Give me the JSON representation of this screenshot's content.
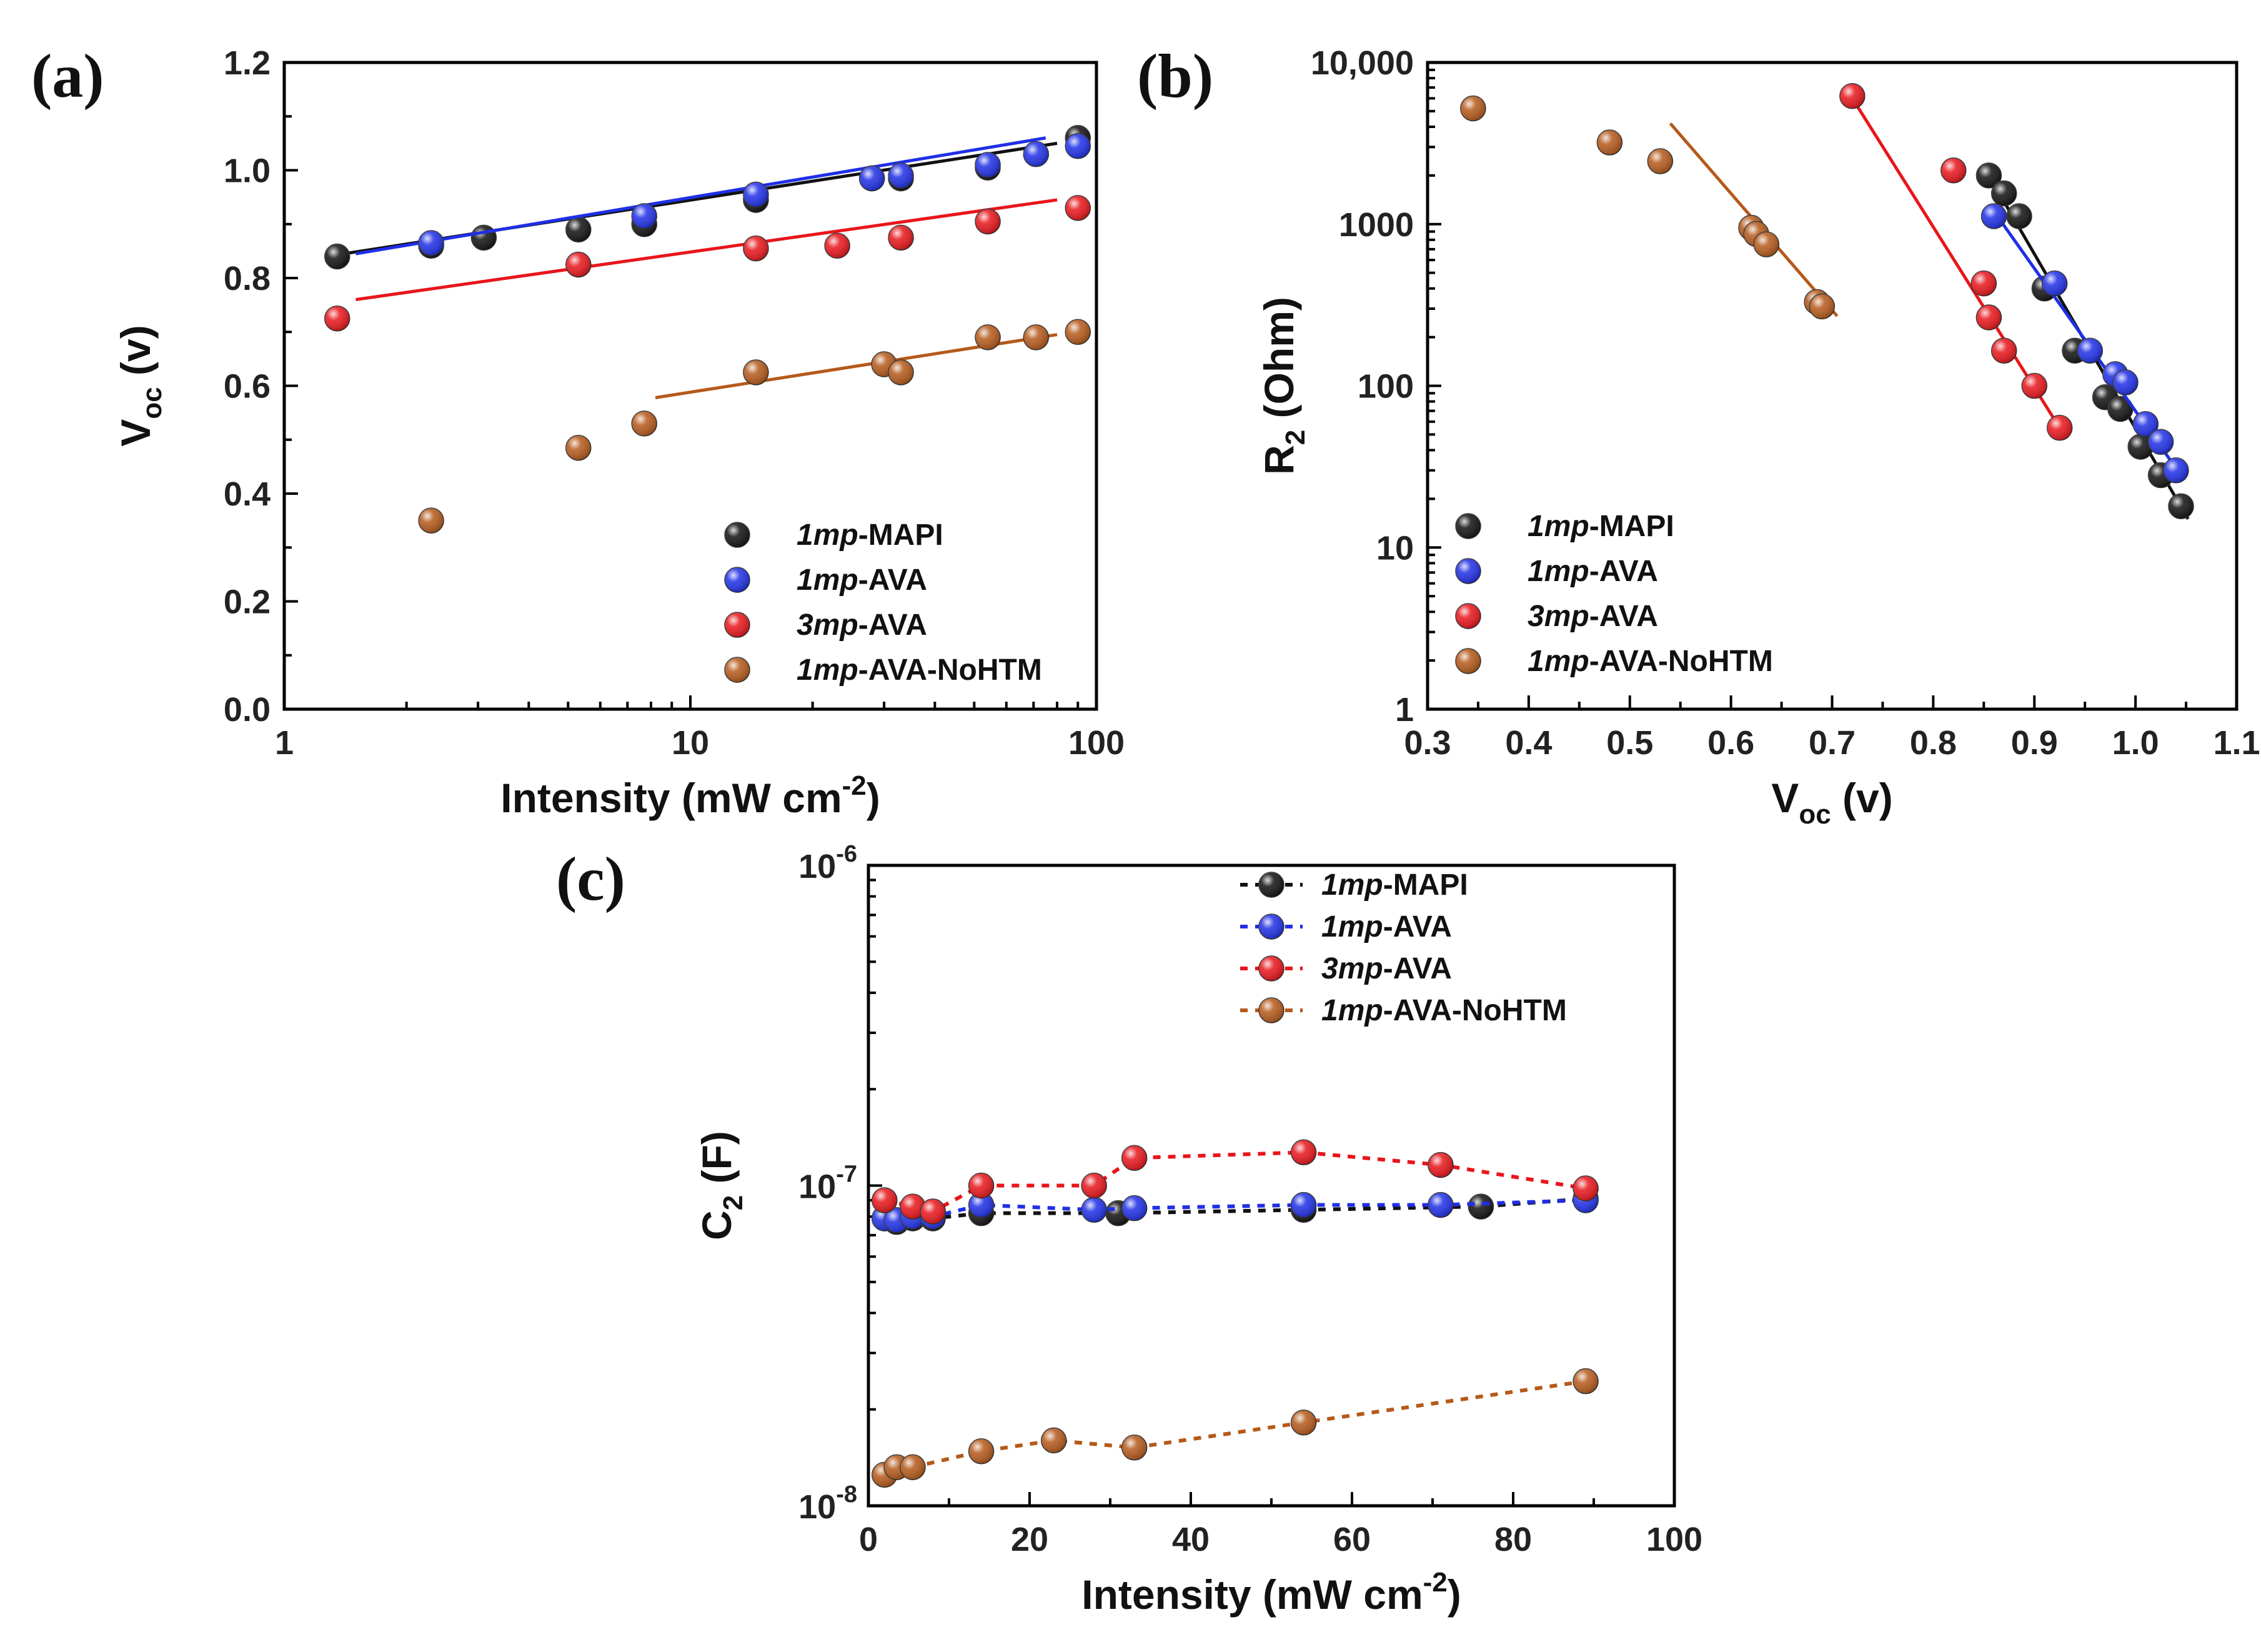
{
  "chart_data": [
    {
      "panel": "(a)",
      "type": "scatter",
      "x_scale": "log",
      "xlim": [
        1,
        100
      ],
      "ylim": [
        0,
        1.2
      ],
      "xticks": [
        1,
        10,
        100
      ],
      "xtick_labels": [
        "1",
        "10",
        "100"
      ],
      "yticks": [
        0,
        0.2,
        0.4,
        0.6,
        0.8,
        1.0,
        1.2
      ],
      "ytick_labels": [
        "0.0",
        "0.2",
        "0.4",
        "0.6",
        "0.8",
        "1.0",
        "1.2"
      ],
      "xlabel": "Intensity (mW cm",
      "xlabel_sup": "-2",
      "xlabel_end": ")",
      "ylabel": "V",
      "ylabel_sub": "oc",
      "ylabel_end": " (v)",
      "legend_position": "bottom-right",
      "series": [
        {
          "name_italic": "1mp",
          "name_rest": "-MAPI",
          "color": "#111111",
          "x": [
            1.35,
            2.3,
            3.1,
            5.3,
            7.7,
            14.5,
            28,
            33,
            54,
            90
          ],
          "y": [
            0.84,
            0.86,
            0.875,
            0.89,
            0.9,
            0.945,
            0.985,
            0.985,
            1.005,
            1.06
          ],
          "fit": {
            "x": [
              1.4,
              80
            ],
            "y": [
              0.845,
              1.05
            ]
          }
        },
        {
          "name_italic": "1mp",
          "name_rest": "-AVA",
          "color": "#1f2fe6",
          "x": [
            2.3,
            7.7,
            14.5,
            28,
            33,
            54,
            71,
            90
          ],
          "y": [
            0.865,
            0.915,
            0.955,
            0.985,
            0.99,
            1.01,
            1.03,
            1.045
          ],
          "fit": {
            "x": [
              1.5,
              75
            ],
            "y": [
              0.845,
              1.06
            ]
          }
        },
        {
          "name_italic": "3mp",
          "name_rest": "-AVA",
          "color": "#e8151b",
          "x": [
            1.35,
            5.3,
            14.5,
            23,
            33,
            54,
            90
          ],
          "y": [
            0.725,
            0.825,
            0.855,
            0.86,
            0.875,
            0.905,
            0.93
          ],
          "fit": {
            "x": [
              1.5,
              80
            ],
            "y": [
              0.76,
              0.945
            ]
          }
        },
        {
          "name_italic": "1mp",
          "name_rest": "-AVA-NoHTM",
          "color": "#b5591a",
          "x": [
            2.3,
            5.3,
            7.7,
            14.5,
            30,
            33,
            54,
            71,
            90
          ],
          "y": [
            0.35,
            0.485,
            0.53,
            0.625,
            0.64,
            0.625,
            0.69,
            0.69,
            0.7
          ],
          "fit": {
            "x": [
              8.2,
              80
            ],
            "y": [
              0.578,
              0.695
            ]
          }
        }
      ]
    },
    {
      "panel": "(b)",
      "type": "scatter",
      "y_scale": "log",
      "xlim": [
        0.3,
        1.1
      ],
      "ylim": [
        1,
        10000
      ],
      "xticks": [
        0.3,
        0.4,
        0.5,
        0.6,
        0.7,
        0.8,
        0.9,
        1.0,
        1.1
      ],
      "xtick_labels": [
        "0.3",
        "0.4",
        "0.5",
        "0.6",
        "0.7",
        "0.8",
        "0.9",
        "1.0",
        "1.1"
      ],
      "yticks": [
        1,
        10,
        100,
        1000,
        10000
      ],
      "ytick_labels": [
        "1",
        "10",
        "100",
        "1000",
        "10,000"
      ],
      "xlabel": "V",
      "xlabel_sub": "oc",
      "xlabel_end": " (v)",
      "ylabel": "R",
      "ylabel_sub": "2",
      "ylabel_end": " (Ohm)",
      "legend_position": "bottom-left",
      "series": [
        {
          "name_italic": "1mp",
          "name_rest": "-MAPI",
          "color": "#111111",
          "x": [
            0.855,
            0.87,
            0.885,
            0.91,
            0.94,
            0.97,
            0.985,
            1.005,
            1.025,
            1.045
          ],
          "y": [
            2000,
            1550,
            1120,
            400,
            165,
            85,
            72,
            42,
            28,
            18
          ],
          "fit": {
            "x": [
              0.855,
              1.052
            ],
            "y": [
              2000,
              15
            ]
          }
        },
        {
          "name_italic": "1mp",
          "name_rest": "-AVA",
          "color": "#1f2fe6",
          "x": [
            0.86,
            0.92,
            0.955,
            0.98,
            0.99,
            1.01,
            1.025,
            1.04
          ],
          "y": [
            1120,
            430,
            165,
            118,
            105,
            58,
            45,
            30
          ],
          "fit": {
            "x": [
              0.86,
              1.045
            ],
            "y": [
              1200,
              28
            ]
          }
        },
        {
          "name_italic": "3mp",
          "name_rest": "-AVA",
          "color": "#e8151b",
          "x": [
            0.72,
            0.82,
            0.85,
            0.855,
            0.87,
            0.9,
            0.925
          ],
          "y": [
            6200,
            2150,
            430,
            265,
            165,
            100,
            55
          ],
          "fit": {
            "x": [
              0.72,
              0.925
            ],
            "y": [
              6000,
              55
            ]
          }
        },
        {
          "name_italic": "1mp",
          "name_rest": "-AVA-NoHTM",
          "color": "#b5591a",
          "x": [
            0.345,
            0.48,
            0.53,
            0.62,
            0.625,
            0.635,
            0.685,
            0.69
          ],
          "y": [
            5200,
            3200,
            2450,
            950,
            870,
            750,
            330,
            310
          ],
          "fit": {
            "x": [
              0.54,
              0.705
            ],
            "y": [
              4200,
              270
            ]
          }
        }
      ]
    },
    {
      "panel": "(c)",
      "type": "line",
      "y_scale": "log",
      "line_style": "dotted",
      "xlim": [
        0,
        100
      ],
      "ylim": [
        1e-08,
        1e-06
      ],
      "xticks": [
        0,
        20,
        40,
        60,
        80,
        100
      ],
      "xtick_labels": [
        "0",
        "20",
        "40",
        "60",
        "80",
        "100"
      ],
      "yticks": [
        1e-08,
        1e-07,
        1e-06
      ],
      "ytick_base": "10",
      "ytick_exponents": [
        "-8",
        "-7",
        "-6"
      ],
      "xlabel": "Intensity (mW cm",
      "xlabel_sup": "-2",
      "xlabel_end": ")",
      "ylabel": "C",
      "ylabel_sub": "2",
      "ylabel_end": " (F)",
      "legend_position": "top-right",
      "series": [
        {
          "name_italic": "1mp",
          "name_rest": "-MAPI",
          "color": "#111111",
          "x": [
            2,
            3.5,
            5.5,
            8,
            14,
            31,
            54,
            76,
            89
          ],
          "y": [
            7.9e-08,
            7.7e-08,
            7.9e-08,
            7.9e-08,
            8.2e-08,
            8.2e-08,
            8.4e-08,
            8.6e-08,
            9.1e-08
          ]
        },
        {
          "name_italic": "1mp",
          "name_rest": "-AVA",
          "color": "#1f2fe6",
          "x": [
            2,
            3.5,
            5.5,
            8,
            14,
            28,
            33,
            54,
            71,
            89
          ],
          "y": [
            7.9e-08,
            7.8e-08,
            8e-08,
            8e-08,
            8.7e-08,
            8.4e-08,
            8.5e-08,
            8.7e-08,
            8.7e-08,
            9e-08
          ]
        },
        {
          "name_italic": "3mp",
          "name_rest": "-AVA",
          "color": "#e8151b",
          "x": [
            2,
            5.5,
            8,
            14,
            28,
            33,
            54,
            71,
            89
          ],
          "y": [
            9e-08,
            8.6e-08,
            8.3e-08,
            1e-07,
            1e-07,
            1.22e-07,
            1.27e-07,
            1.16e-07,
            9.8e-08
          ]
        },
        {
          "name_italic": "1mp",
          "name_rest": "-AVA-NoHTM",
          "color": "#b5591a",
          "x": [
            2,
            3.5,
            5.5,
            14,
            23,
            33,
            54,
            89
          ],
          "y": [
            1.25e-08,
            1.32e-08,
            1.32e-08,
            1.48e-08,
            1.6e-08,
            1.52e-08,
            1.82e-08,
            2.45e-08
          ]
        }
      ]
    }
  ]
}
